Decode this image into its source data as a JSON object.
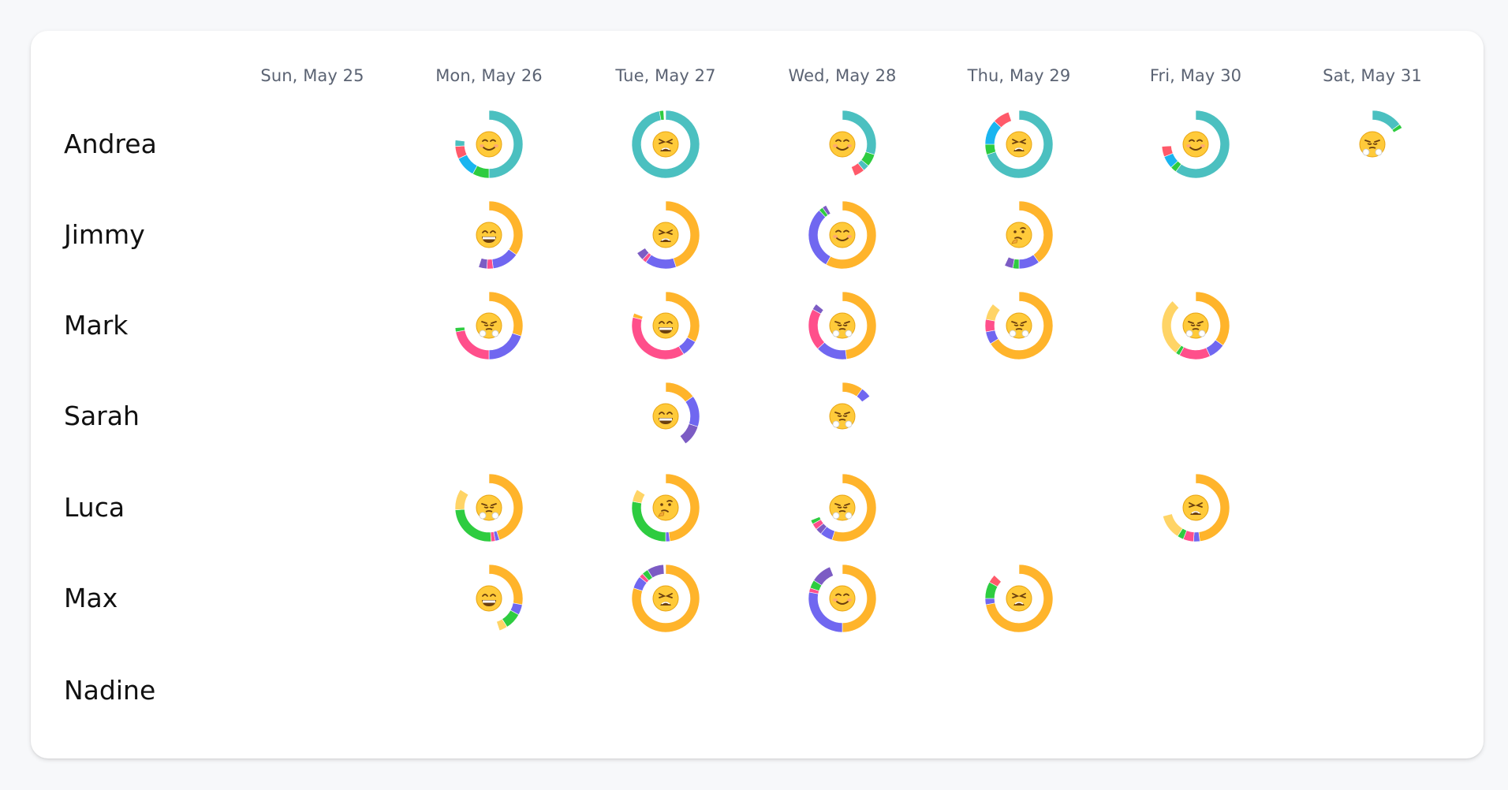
{
  "days": [
    "Sun, May 25",
    "Mon, May 26",
    "Tue, May 27",
    "Wed, May 28",
    "Thu, May 29",
    "Fri, May 30",
    "Sat, May 31"
  ],
  "people": [
    "Andrea",
    "Jimmy",
    "Mark",
    "Sarah",
    "Luca",
    "Max",
    "Nadine"
  ],
  "colors": {
    "teal": "#4bc0c0",
    "orange": "#ffb42b",
    "pink": "#ff4f8b",
    "purple": "#7067f0",
    "violet": "#7c5cc4",
    "green": "#2ecc40",
    "red": "#ff5a6a",
    "blue": "#1ab5f0",
    "lightorange": "#ffd466"
  },
  "cells": [
    {
      "row": 0,
      "col": 1,
      "mood": "smile",
      "segments": [
        [
          "teal",
          0.5
        ],
        [
          "green",
          0.08
        ],
        [
          "blue",
          0.1
        ],
        [
          "red",
          0.06
        ],
        [
          "teal",
          0.03
        ]
      ]
    },
    {
      "row": 0,
      "col": 2,
      "mood": "weary",
      "segments": [
        [
          "teal",
          0.97
        ],
        [
          "green",
          0.02
        ]
      ]
    },
    {
      "row": 0,
      "col": 3,
      "mood": "smile",
      "segments": [
        [
          "teal",
          0.3
        ],
        [
          "green",
          0.06
        ],
        [
          "teal",
          0.03
        ],
        [
          "red",
          0.05
        ]
      ]
    },
    {
      "row": 0,
      "col": 4,
      "mood": "weary",
      "segments": [
        [
          "teal",
          0.7
        ],
        [
          "green",
          0.05
        ],
        [
          "blue",
          0.12
        ],
        [
          "red",
          0.08
        ]
      ]
    },
    {
      "row": 0,
      "col": 5,
      "mood": "smile",
      "segments": [
        [
          "teal",
          0.6
        ],
        [
          "green",
          0.03
        ],
        [
          "blue",
          0.06
        ],
        [
          "red",
          0.05
        ]
      ]
    },
    {
      "row": 0,
      "col": 6,
      "mood": "steam",
      "segments": [
        [
          "teal",
          0.15
        ],
        [
          "green",
          0.02
        ]
      ]
    },
    {
      "row": 1,
      "col": 1,
      "mood": "grin",
      "segments": [
        [
          "orange",
          0.35
        ],
        [
          "purple",
          0.13
        ],
        [
          "pink",
          0.03
        ],
        [
          "violet",
          0.04
        ]
      ]
    },
    {
      "row": 1,
      "col": 2,
      "mood": "weary",
      "segments": [
        [
          "orange",
          0.45
        ],
        [
          "purple",
          0.15
        ],
        [
          "pink",
          0.02
        ],
        [
          "violet",
          0.04
        ]
      ]
    },
    {
      "row": 1,
      "col": 3,
      "mood": "smile",
      "segments": [
        [
          "orange",
          0.58
        ],
        [
          "purple",
          0.3
        ],
        [
          "green",
          0.02
        ],
        [
          "violet",
          0.02
        ]
      ]
    },
    {
      "row": 1,
      "col": 4,
      "mood": "think",
      "segments": [
        [
          "orange",
          0.4
        ],
        [
          "purple",
          0.1
        ],
        [
          "green",
          0.03
        ],
        [
          "violet",
          0.04
        ]
      ]
    },
    {
      "row": 2,
      "col": 1,
      "mood": "steam",
      "segments": [
        [
          "orange",
          0.3
        ],
        [
          "purple",
          0.2
        ],
        [
          "pink",
          0.22
        ],
        [
          "green",
          0.02
        ]
      ]
    },
    {
      "row": 2,
      "col": 2,
      "mood": "grin",
      "segments": [
        [
          "orange",
          0.33
        ],
        [
          "purple",
          0.08
        ],
        [
          "pink",
          0.38
        ],
        [
          "orange",
          0.02
        ]
      ]
    },
    {
      "row": 2,
      "col": 3,
      "mood": "steam",
      "segments": [
        [
          "orange",
          0.48
        ],
        [
          "purple",
          0.15
        ],
        [
          "pink",
          0.2
        ],
        [
          "violet",
          0.03
        ]
      ]
    },
    {
      "row": 2,
      "col": 4,
      "mood": "steam",
      "segments": [
        [
          "orange",
          0.66
        ],
        [
          "purple",
          0.06
        ],
        [
          "pink",
          0.06
        ],
        [
          "lightorange",
          0.08
        ]
      ]
    },
    {
      "row": 2,
      "col": 5,
      "mood": "steam",
      "segments": [
        [
          "orange",
          0.35
        ],
        [
          "purple",
          0.08
        ],
        [
          "pink",
          0.15
        ],
        [
          "green",
          0.02
        ],
        [
          "lightorange",
          0.28
        ]
      ]
    },
    {
      "row": 3,
      "col": 2,
      "mood": "grin",
      "segments": [
        [
          "orange",
          0.15
        ],
        [
          "purple",
          0.15
        ],
        [
          "violet",
          0.1
        ]
      ]
    },
    {
      "row": 3,
      "col": 3,
      "mood": "steam",
      "segments": [
        [
          "orange",
          0.1
        ],
        [
          "purple",
          0.05
        ]
      ]
    },
    {
      "row": 4,
      "col": 1,
      "mood": "steam",
      "segments": [
        [
          "orange",
          0.45
        ],
        [
          "purple",
          0.02
        ],
        [
          "pink",
          0.02
        ],
        [
          "green",
          0.25
        ],
        [
          "lightorange",
          0.1
        ]
      ]
    },
    {
      "row": 4,
      "col": 2,
      "mood": "think",
      "segments": [
        [
          "orange",
          0.48
        ],
        [
          "purple",
          0.02
        ],
        [
          "green",
          0.28
        ],
        [
          "lightorange",
          0.06
        ]
      ]
    },
    {
      "row": 4,
      "col": 3,
      "mood": "steam",
      "segments": [
        [
          "orange",
          0.55
        ],
        [
          "purple",
          0.06
        ],
        [
          "violet",
          0.03
        ],
        [
          "pink",
          0.03
        ],
        [
          "green",
          0.02
        ]
      ]
    },
    {
      "row": 4,
      "col": 5,
      "mood": "weary",
      "segments": [
        [
          "orange",
          0.48
        ],
        [
          "purple",
          0.03
        ],
        [
          "pink",
          0.05
        ],
        [
          "green",
          0.03
        ],
        [
          "lightorange",
          0.12
        ]
      ]
    },
    {
      "row": 5,
      "col": 1,
      "mood": "grin",
      "segments": [
        [
          "orange",
          0.28
        ],
        [
          "purple",
          0.05
        ],
        [
          "green",
          0.08
        ],
        [
          "lightorange",
          0.04
        ]
      ]
    },
    {
      "row": 5,
      "col": 2,
      "mood": "weary",
      "segments": [
        [
          "orange",
          0.8
        ],
        [
          "purple",
          0.06
        ],
        [
          "pink",
          0.02
        ],
        [
          "green",
          0.03
        ],
        [
          "violet",
          0.08
        ]
      ]
    },
    {
      "row": 5,
      "col": 3,
      "mood": "smile",
      "segments": [
        [
          "orange",
          0.5
        ],
        [
          "purple",
          0.28
        ],
        [
          "pink",
          0.02
        ],
        [
          "green",
          0.04
        ],
        [
          "violet",
          0.1
        ]
      ]
    },
    {
      "row": 5,
      "col": 4,
      "mood": "weary",
      "segments": [
        [
          "orange",
          0.72
        ],
        [
          "purple",
          0.03
        ],
        [
          "green",
          0.08
        ],
        [
          "red",
          0.04
        ]
      ]
    }
  ]
}
